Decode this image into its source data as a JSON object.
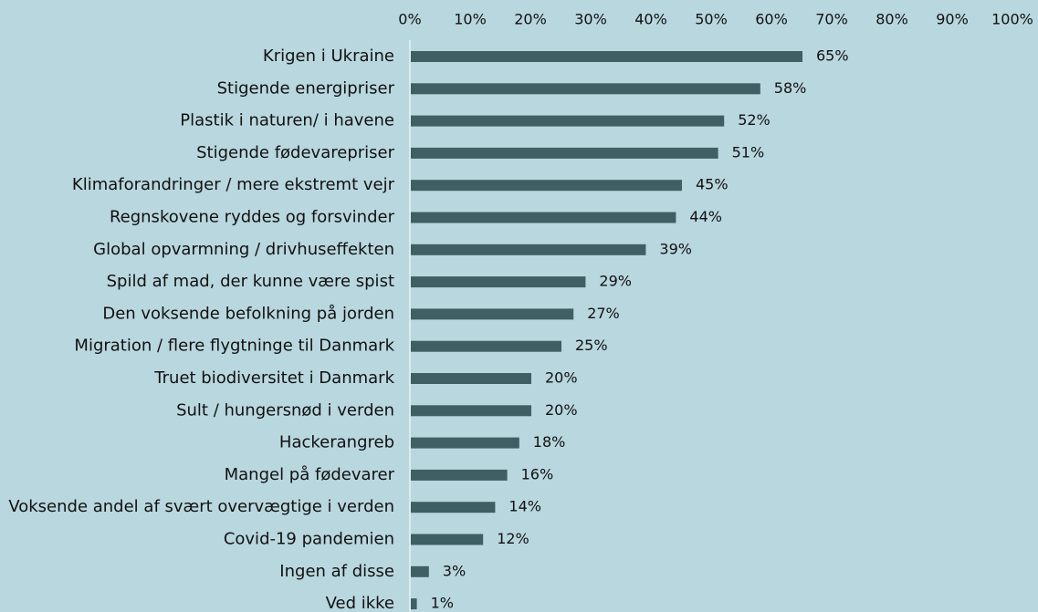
{
  "chart_data": {
    "type": "bar",
    "orientation": "horizontal",
    "color": "#3e5f63",
    "categories": [
      "Krigen i Ukraine",
      "Stigende energipriser",
      "Plastik i naturen/ i havene",
      "Stigende fødevarepriser",
      "Klimaforandringer / mere ekstremt vejr",
      "Regnskovene ryddes og forsvinder",
      "Global opvarmning / drivhuseffekten",
      "Spild af mad, der kunne være spist",
      "Den voksende befolkning på jorden",
      "Migration / flere flygtninge til Danmark",
      "Truet biodiversitet i Danmark",
      "Sult / hungersnød i verden",
      "Hackerangreb",
      "Mangel på fødevarer",
      "Voksende andel af svært overvægtige i verden",
      "Covid-19 pandemien",
      "Ingen af disse",
      "Ved ikke"
    ],
    "values": [
      65,
      58,
      52,
      51,
      45,
      44,
      39,
      29,
      27,
      25,
      20,
      20,
      18,
      16,
      14,
      12,
      3,
      1
    ],
    "value_labels": [
      "65%",
      "58%",
      "52%",
      "51%",
      "45%",
      "44%",
      "39%",
      "29%",
      "27%",
      "25%",
      "20%",
      "20%",
      "18%",
      "16%",
      "14%",
      "12%",
      "3%",
      "1%"
    ],
    "xlim": [
      0,
      100
    ],
    "xticks": [
      {
        "value": 0,
        "label": "0%"
      },
      {
        "value": 10,
        "label": "10%"
      },
      {
        "value": 20,
        "label": "20%"
      },
      {
        "value": 30,
        "label": "30%"
      },
      {
        "value": 40,
        "label": "40%"
      },
      {
        "value": 50,
        "label": "50%"
      },
      {
        "value": 60,
        "label": "60%"
      },
      {
        "value": 70,
        "label": "70%"
      },
      {
        "value": 80,
        "label": "80%"
      },
      {
        "value": 90,
        "label": "90%"
      },
      {
        "value": 100,
        "label": "100%"
      }
    ],
    "grid": false
  }
}
